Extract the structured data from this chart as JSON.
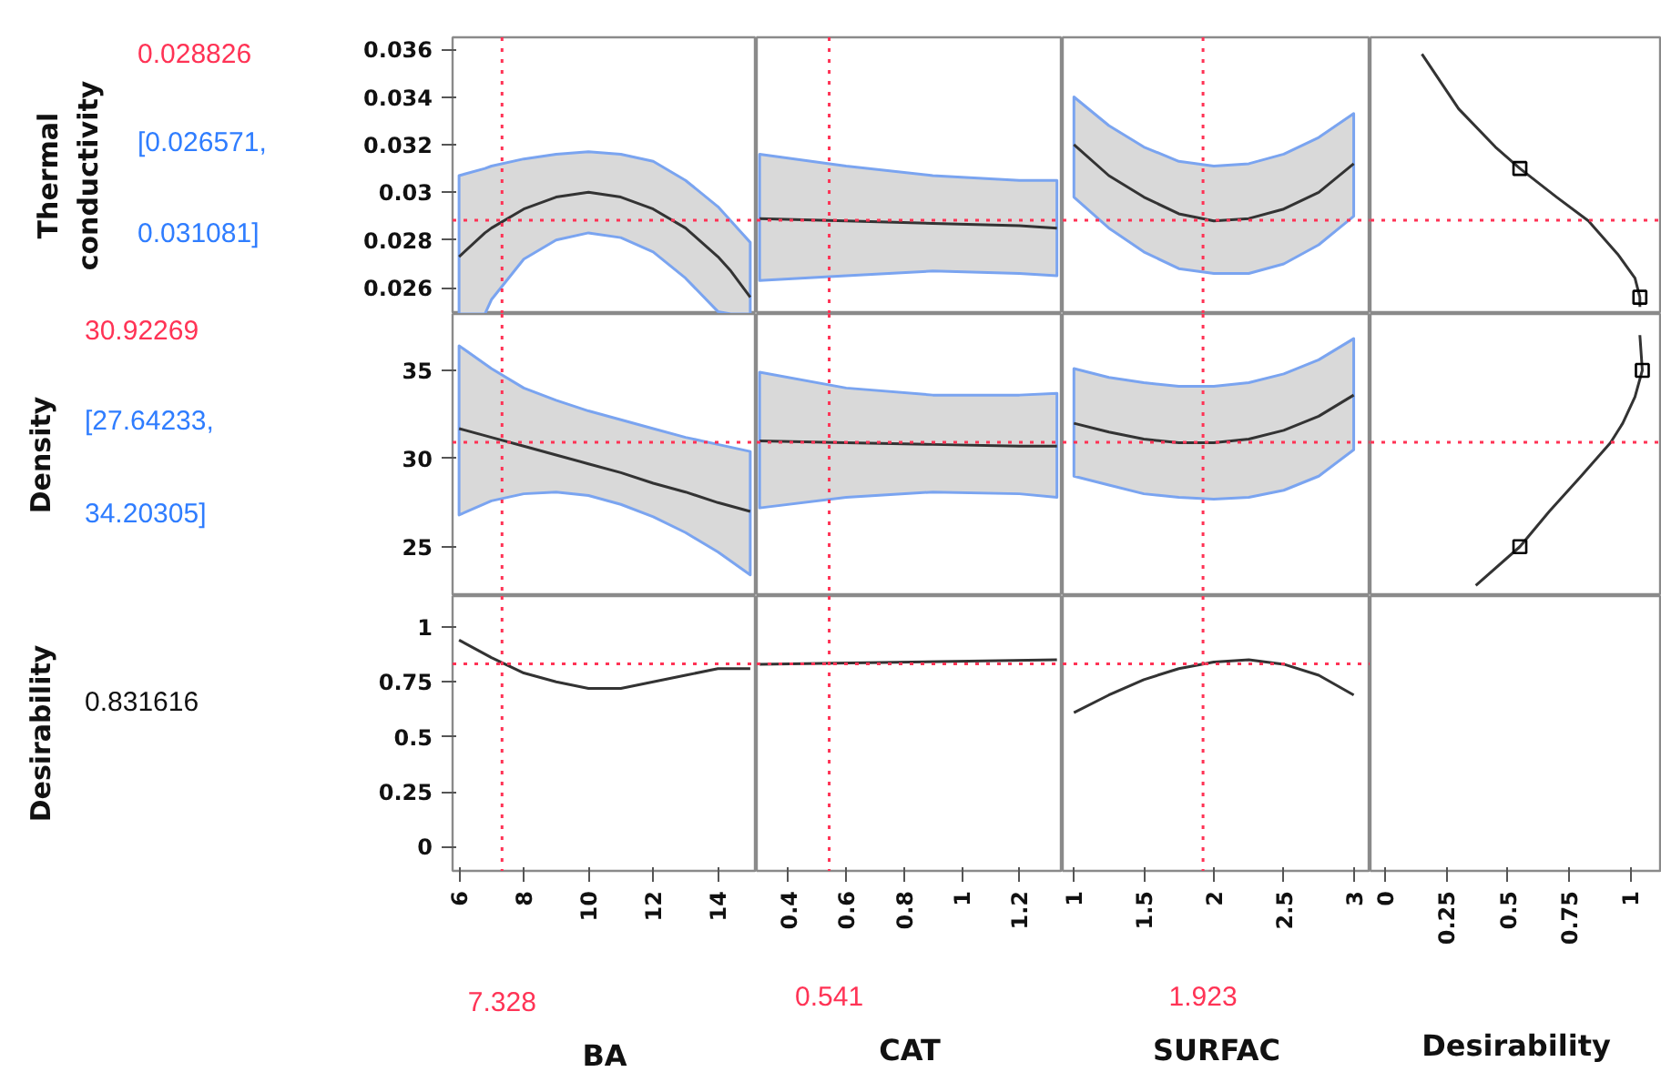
{
  "chart_data": [
    {
      "type": "line",
      "ylabel": "Thermal conductivity",
      "xlim": [
        5.8,
        15.2
      ],
      "ylim": [
        0.0249,
        0.0365
      ],
      "yticks": [
        0.026,
        0.028,
        0.03,
        0.032,
        0.034,
        0.036
      ],
      "tick_labels": "y",
      "series": [
        {
          "color": "#333333",
          "x": [
            6,
            6.8,
            7,
            8,
            9,
            10,
            11,
            12,
            13,
            14,
            14.4,
            15
          ],
          "values": [
            0.0273,
            0.0283,
            0.0285,
            0.0293,
            0.0298,
            0.03,
            0.0298,
            0.0293,
            0.0285,
            0.0273,
            0.0267,
            0.0256
          ],
          "upper": [
            0.0307,
            0.031,
            0.0311,
            0.0314,
            0.0316,
            0.0317,
            0.0316,
            0.0313,
            0.0305,
            0.0294,
            0.0288,
            0.0279
          ],
          "lower": [
            0.0249,
            0.0249,
            0.0255,
            0.0272,
            0.028,
            0.0283,
            0.0281,
            0.0275,
            0.0264,
            0.025,
            0.0249,
            0.0249
          ]
        }
      ],
      "ref_lines": [
        {
          "axis": "x",
          "value": 7.328,
          "color": "#ff3355",
          "line_style": "dotted"
        },
        {
          "axis": "y",
          "value": 0.028826,
          "label": "0.028826",
          "color": "#ff3355",
          "line_style": "dotted"
        }
      ],
      "annotations": [
        "[0.026571, 0.031081]"
      ]
    },
    {
      "type": "line",
      "xlim": [
        0.29,
        1.35
      ],
      "ylim": [
        0.0249,
        0.0365
      ],
      "tick_labels": false,
      "series": [
        {
          "color": "#333333",
          "x": [
            0.3,
            0.6,
            0.9,
            1.2,
            1.33
          ],
          "values": [
            0.0289,
            0.0288,
            0.0287,
            0.0286,
            0.0285
          ],
          "upper": [
            0.0316,
            0.0311,
            0.0307,
            0.0305,
            0.0305
          ],
          "lower": [
            0.0263,
            0.0265,
            0.0267,
            0.0266,
            0.0265
          ]
        }
      ],
      "ref_lines": [
        {
          "axis": "x",
          "value": 0.541,
          "color": "#ff3355",
          "line_style": "dotted"
        },
        {
          "axis": "y",
          "value": 0.028826,
          "color": "#ff3355",
          "line_style": "dotted"
        }
      ]
    },
    {
      "type": "line",
      "xlim": [
        0.92,
        3.12
      ],
      "ylim": [
        0.0249,
        0.0365
      ],
      "tick_labels": false,
      "series": [
        {
          "color": "#333333",
          "x": [
            1,
            1.25,
            1.5,
            1.75,
            2,
            2.25,
            2.5,
            2.75,
            3
          ],
          "values": [
            0.032,
            0.0307,
            0.0298,
            0.0291,
            0.0288,
            0.0289,
            0.0293,
            0.03,
            0.0312
          ],
          "upper": [
            0.034,
            0.0328,
            0.0319,
            0.0313,
            0.0311,
            0.0312,
            0.0316,
            0.0323,
            0.0333
          ],
          "lower": [
            0.0298,
            0.0285,
            0.0275,
            0.0268,
            0.0266,
            0.0266,
            0.027,
            0.0278,
            0.029
          ]
        }
      ],
      "ref_lines": [
        {
          "axis": "x",
          "value": 1.923,
          "color": "#ff3355",
          "line_style": "dotted"
        },
        {
          "axis": "y",
          "value": 0.028826,
          "color": "#ff3355",
          "line_style": "dotted"
        }
      ]
    },
    {
      "type": "line",
      "xlim": [
        -0.06,
        1.13
      ],
      "ylim": [
        0.0249,
        0.0365
      ],
      "tick_labels": false,
      "series": [
        {
          "color": "#333333",
          "x": [
            0.15,
            0.3,
            0.45,
            0.55,
            0.7,
            0.83,
            0.95,
            1.02,
            1.04,
            1.04
          ],
          "values": [
            0.0358,
            0.0335,
            0.0319,
            0.031,
            0.0298,
            0.0288,
            0.0274,
            0.0264,
            0.0256,
            0.0252
          ]
        },
        {
          "type": "scatter",
          "marker": "square",
          "color": "#000000",
          "x": [
            0.55,
            1.04
          ],
          "values": [
            0.031,
            0.0256
          ]
        }
      ],
      "ref_lines": [
        {
          "axis": "y",
          "value": 0.028826,
          "color": "#ff3355",
          "line_style": "dotted"
        }
      ]
    },
    {
      "type": "line",
      "ylabel": "Density",
      "xlim": [
        5.8,
        15.2
      ],
      "ylim": [
        22.2,
        38.2
      ],
      "yticks": [
        25,
        30,
        35
      ],
      "tick_labels": "y",
      "series": [
        {
          "color": "#333333",
          "x": [
            6,
            7,
            8,
            9,
            10,
            11,
            12,
            13,
            14,
            15
          ],
          "values": [
            31.7,
            31.2,
            30.7,
            30.2,
            29.7,
            29.2,
            28.6,
            28.1,
            27.5,
            27.0
          ],
          "upper": [
            36.4,
            35.1,
            34.0,
            33.3,
            32.7,
            32.2,
            31.7,
            31.2,
            30.8,
            30.4
          ],
          "lower": [
            26.8,
            27.6,
            28.0,
            28.1,
            27.9,
            27.4,
            26.7,
            25.8,
            24.7,
            23.4
          ]
        }
      ],
      "ref_lines": [
        {
          "axis": "x",
          "value": 7.328,
          "color": "#ff3355",
          "line_style": "dotted"
        },
        {
          "axis": "y",
          "value": 30.92269,
          "label": "30.92269",
          "color": "#ff3355",
          "line_style": "dotted"
        }
      ],
      "annotations": [
        "[27.64233, 34.20305]"
      ]
    },
    {
      "type": "line",
      "xlim": [
        0.29,
        1.35
      ],
      "ylim": [
        22.2,
        38.2
      ],
      "tick_labels": false,
      "series": [
        {
          "color": "#333333",
          "x": [
            0.3,
            0.6,
            0.9,
            1.2,
            1.33
          ],
          "values": [
            31.0,
            30.9,
            30.8,
            30.7,
            30.7
          ],
          "upper": [
            34.9,
            34.0,
            33.6,
            33.6,
            33.7
          ],
          "lower": [
            27.2,
            27.8,
            28.1,
            28.0,
            27.8
          ]
        }
      ],
      "ref_lines": [
        {
          "axis": "x",
          "value": 0.541,
          "color": "#ff3355",
          "line_style": "dotted"
        },
        {
          "axis": "y",
          "value": 30.92269,
          "color": "#ff3355",
          "line_style": "dotted"
        }
      ]
    },
    {
      "type": "line",
      "xlim": [
        0.92,
        3.12
      ],
      "ylim": [
        22.2,
        38.2
      ],
      "tick_labels": false,
      "series": [
        {
          "color": "#333333",
          "x": [
            1,
            1.25,
            1.5,
            1.75,
            2,
            2.25,
            2.5,
            2.75,
            3
          ],
          "values": [
            32.0,
            31.5,
            31.1,
            30.9,
            30.9,
            31.1,
            31.6,
            32.4,
            33.6
          ],
          "upper": [
            35.1,
            34.6,
            34.3,
            34.1,
            34.1,
            34.3,
            34.8,
            35.6,
            36.8
          ],
          "lower": [
            29.0,
            28.5,
            28.0,
            27.8,
            27.7,
            27.8,
            28.2,
            29.0,
            30.5
          ]
        }
      ],
      "ref_lines": [
        {
          "axis": "x",
          "value": 1.923,
          "color": "#ff3355",
          "line_style": "dotted"
        },
        {
          "axis": "y",
          "value": 30.92269,
          "color": "#ff3355",
          "line_style": "dotted"
        }
      ]
    },
    {
      "type": "line",
      "xlim": [
        -0.06,
        1.13
      ],
      "ylim": [
        22.2,
        38.2
      ],
      "tick_labels": false,
      "series": [
        {
          "color": "#333333",
          "x": [
            1.04,
            1.05,
            1.02,
            0.97,
            0.92,
            0.8,
            0.67,
            0.55,
            0.37
          ],
          "values": [
            37.0,
            35,
            33.5,
            32,
            30.9,
            29,
            27,
            25,
            22.8
          ]
        },
        {
          "type": "scatter",
          "marker": "square",
          "color": "#000000",
          "x": [
            0.55,
            1.05
          ],
          "values": [
            25,
            35
          ]
        }
      ],
      "ref_lines": [
        {
          "axis": "y",
          "value": 30.92269,
          "color": "#ff3355",
          "line_style": "dotted"
        }
      ]
    },
    {
      "type": "line",
      "ylabel": "Desirability",
      "xlabel": "BA",
      "xlim": [
        5.8,
        15.2
      ],
      "ylim": [
        -0.11,
        1.14
      ],
      "xticks": [
        6,
        8,
        10,
        12,
        14
      ],
      "yticks": [
        0,
        0.25,
        0.5,
        0.75,
        1
      ],
      "series": [
        {
          "color": "#333333",
          "x": [
            6,
            7,
            8,
            9,
            10,
            11,
            12,
            13,
            14,
            15
          ],
          "values": [
            0.94,
            0.86,
            0.79,
            0.75,
            0.72,
            0.72,
            0.75,
            0.78,
            0.81,
            0.81
          ]
        }
      ],
      "ref_lines": [
        {
          "axis": "x",
          "value": 7.328,
          "label": "7.328",
          "color": "#ff3355",
          "line_style": "dotted"
        },
        {
          "axis": "y",
          "value": 0.831616,
          "color": "#ff3355",
          "line_style": "dotted"
        }
      ],
      "annotations": [
        "0.831616"
      ]
    },
    {
      "type": "line",
      "xlabel": "CAT",
      "xlim": [
        0.29,
        1.35
      ],
      "ylim": [
        -0.11,
        1.14
      ],
      "xticks": [
        0.4,
        0.6,
        0.8,
        1,
        1.2
      ],
      "tick_labels": "x",
      "series": [
        {
          "color": "#333333",
          "x": [
            0.3,
            1.33
          ],
          "values": [
            0.83,
            0.85
          ]
        }
      ],
      "ref_lines": [
        {
          "axis": "x",
          "value": 0.541,
          "label": "0.541",
          "color": "#ff3355",
          "line_style": "dotted"
        },
        {
          "axis": "y",
          "value": 0.831616,
          "color": "#ff3355",
          "line_style": "dotted"
        }
      ]
    },
    {
      "type": "line",
      "xlabel": "SURFAC",
      "xlim": [
        0.92,
        3.12
      ],
      "ylim": [
        -0.11,
        1.14
      ],
      "xticks": [
        1,
        1.5,
        2,
        2.5,
        3
      ],
      "tick_labels": "x",
      "series": [
        {
          "color": "#333333",
          "x": [
            1,
            1.25,
            1.5,
            1.75,
            2,
            2.25,
            2.5,
            2.75,
            3
          ],
          "values": [
            0.61,
            0.69,
            0.76,
            0.81,
            0.84,
            0.85,
            0.83,
            0.78,
            0.69
          ]
        }
      ],
      "ref_lines": [
        {
          "axis": "x",
          "value": 1.923,
          "label": "1.923",
          "color": "#ff3355",
          "line_style": "dotted"
        },
        {
          "axis": "y",
          "value": 0.831616,
          "color": "#ff3355",
          "line_style": "dotted"
        }
      ]
    },
    {
      "type": "line",
      "xlabel": "Desirability",
      "xlim": [
        -0.06,
        1.13
      ],
      "ylim": [
        -0.11,
        1.14
      ],
      "xticks": [
        0,
        0.25,
        0.5,
        0.75,
        1
      ],
      "tick_labels": "x"
    }
  ]
}
